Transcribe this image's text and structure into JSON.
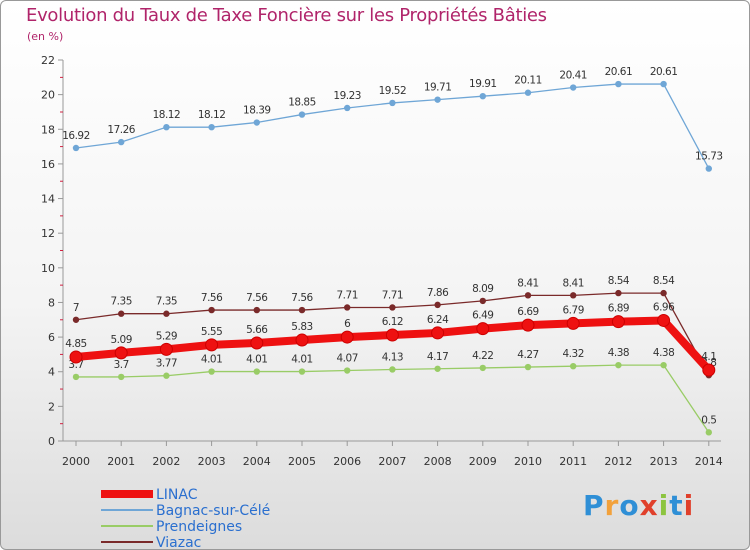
{
  "title": "Evolution du Taux de Taxe Foncière sur les Propriétés Bâties",
  "unit_label": "(en %)",
  "logo": {
    "text": "Proxiti",
    "letters": [
      "P",
      "r",
      "o",
      "x",
      "i",
      "t",
      "i"
    ],
    "colors": [
      "#2f8fd6",
      "#f2a13b",
      "#2f8fd6",
      "#e0402b",
      "#8cc43f",
      "#2f8fd6",
      "#e0402b"
    ]
  },
  "chart_data": {
    "type": "line",
    "categories": [
      "2000",
      "2001",
      "2002",
      "2003",
      "2004",
      "2005",
      "2006",
      "2007",
      "2008",
      "2009",
      "2010",
      "2011",
      "2012",
      "2013",
      "2014"
    ],
    "ylim": [
      0,
      22
    ],
    "yticks": [
      "0",
      "2",
      "4",
      "6",
      "8",
      "10",
      "12",
      "14",
      "16",
      "18",
      "20",
      "22"
    ],
    "grid": false,
    "legend_position": "bottom-left",
    "series": [
      {
        "name": "Bagnac-sur-Célé",
        "color": "#6fa6d6",
        "values": [
          16.92,
          17.26,
          18.12,
          18.12,
          18.39,
          18.85,
          19.23,
          19.52,
          19.71,
          19.91,
          20.11,
          20.41,
          20.61,
          20.61,
          15.73
        ],
        "labels": [
          "16.92",
          "17.26",
          "18.12",
          "18.12",
          "18.39",
          "18.85",
          "19.23",
          "19.52",
          "19.71",
          "19.91",
          "20.11",
          "20.41",
          "20.61",
          "20.61",
          "15.73"
        ]
      },
      {
        "name": "Viazac",
        "color": "#7a2a2a",
        "values": [
          7,
          7.35,
          7.35,
          7.56,
          7.56,
          7.56,
          7.71,
          7.71,
          7.86,
          8.09,
          8.41,
          8.41,
          8.54,
          8.54,
          3.8
        ],
        "labels": [
          "7",
          "7.35",
          "7.35",
          "7.56",
          "7.56",
          "7.56",
          "7.71",
          "7.71",
          "7.86",
          "8.09",
          "8.41",
          "8.41",
          "8.54",
          "8.54",
          "3.8"
        ]
      },
      {
        "name": "Prendeignes",
        "color": "#99cc66",
        "values": [
          3.7,
          3.7,
          3.77,
          4.01,
          4.01,
          4.01,
          4.07,
          4.13,
          4.17,
          4.22,
          4.27,
          4.32,
          4.38,
          4.38,
          0.5
        ],
        "labels": [
          "3.7",
          "3.7",
          "3.77",
          "4.01",
          "4.01",
          "4.01",
          "4.07",
          "4.13",
          "4.17",
          "4.22",
          "4.27",
          "4.32",
          "4.38",
          "4.38",
          "0.5"
        ]
      },
      {
        "name": "LINAC",
        "color": "#ee1111",
        "values": [
          4.85,
          5.09,
          5.29,
          5.55,
          5.66,
          5.83,
          6,
          6.12,
          6.24,
          6.49,
          6.69,
          6.79,
          6.89,
          6.96,
          4.1
        ],
        "labels": [
          "4.85",
          "5.09",
          "5.29",
          "5.55",
          "5.66",
          "5.83",
          "6",
          "6.12",
          "6.24",
          "6.49",
          "6.69",
          "6.79",
          "6.89",
          "6.96",
          "4.1"
        ]
      }
    ],
    "legend": [
      {
        "name": "LINAC",
        "color": "#ee1111",
        "text_color": "#2a6fcf"
      },
      {
        "name": "Bagnac-sur-Célé",
        "color": "#6fa6d6",
        "text_color": "#2a6fcf"
      },
      {
        "name": "Prendeignes",
        "color": "#99cc66",
        "text_color": "#2a6fcf"
      },
      {
        "name": "Viazac",
        "color": "#7a2a2a",
        "text_color": "#2a6fcf"
      }
    ]
  }
}
